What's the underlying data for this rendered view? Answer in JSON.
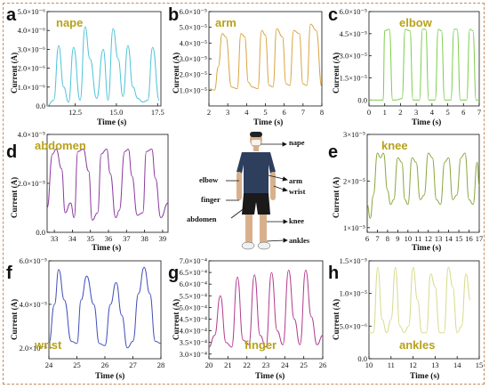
{
  "chart_data": [
    {
      "id": "a",
      "panel_label": "a",
      "title": "nape",
      "type": "line",
      "color": "#4fc3d9",
      "xlabel": "Time (s)",
      "ylabel": "Current (A)",
      "xlim": [
        10.8,
        17.7
      ],
      "ylim": [
        0,
        5e-06
      ],
      "xticks": [
        {
          "v": 12.5,
          "label": "12.5"
        },
        {
          "v": 15,
          "label": "15.0"
        },
        {
          "v": 17.5,
          "label": "17.5"
        }
      ],
      "yticks": [
        {
          "v": 0,
          "label": "0.0"
        },
        {
          "v": 1e-06,
          "label": "1.0×10⁻⁶"
        },
        {
          "v": 2e-06,
          "label": "2.0×10⁻⁶"
        },
        {
          "v": 3e-06,
          "label": "3.0×10⁻⁶"
        },
        {
          "v": 4e-06,
          "label": "4.0×10⁻⁶"
        },
        {
          "v": 5e-06,
          "label": "5.0×10⁻⁶"
        }
      ],
      "x": [
        10.8,
        11.2,
        11.5,
        11.8,
        12.1,
        12.4,
        12.8,
        13.1,
        13.4,
        13.8,
        14.2,
        14.5,
        14.8,
        15.1,
        15.4,
        15.7,
        16.0,
        16.3,
        16.6,
        16.9,
        17.2,
        17.6
      ],
      "y": [
        0,
        3e-07,
        3.2e-06,
        1e-06,
        2e-07,
        3.1e-06,
        3e-07,
        4.2e-06,
        2.5e-06,
        4e-07,
        3e-06,
        3e-07,
        4.1e-06,
        2.5e-06,
        5e-07,
        3.2e-06,
        1e-06,
        4e-07,
        2e-07,
        3e-07,
        3.1e-06,
        3e-07
      ]
    },
    {
      "id": "b",
      "panel_label": "b",
      "title": "arm",
      "type": "line",
      "color": "#d9a441",
      "xlabel": "Time (s)",
      "ylabel": "Current (A)",
      "xlim": [
        2,
        8
      ],
      "ylim": [
        0,
        6e-05
      ],
      "xticks": [
        {
          "v": 2,
          "label": "2"
        },
        {
          "v": 3,
          "label": "3"
        },
        {
          "v": 4,
          "label": "4"
        },
        {
          "v": 5,
          "label": "5"
        },
        {
          "v": 6,
          "label": "6"
        },
        {
          "v": 7,
          "label": "7"
        },
        {
          "v": 8,
          "label": "8"
        }
      ],
      "yticks": [
        {
          "v": 1e-05,
          "label": "1.0×10⁻⁵"
        },
        {
          "v": 2e-05,
          "label": "2.0×10⁻⁵"
        },
        {
          "v": 3e-05,
          "label": "3.0×10⁻⁵"
        },
        {
          "v": 4e-05,
          "label": "4.0×10⁻⁵"
        },
        {
          "v": 5e-05,
          "label": "5.0×10⁻⁵"
        },
        {
          "v": 6e-05,
          "label": "6.0×10⁻⁵"
        }
      ],
      "x": [
        2.0,
        2.3,
        2.5,
        2.7,
        2.9,
        3.2,
        3.5,
        3.7,
        3.9,
        4.1,
        4.3,
        4.6,
        4.8,
        5.0,
        5.2,
        5.4,
        5.6,
        5.9,
        6.1,
        6.3,
        6.5,
        6.8,
        7.0,
        7.2,
        7.4,
        7.7,
        8.0
      ],
      "y": [
        1.1e-05,
        1e-05,
        2.5e-05,
        4.6e-05,
        4.4e-05,
        1.2e-05,
        1.1e-05,
        4.6e-05,
        4.4e-05,
        1.5e-05,
        1.2e-05,
        1.1e-05,
        4.8e-05,
        4.5e-05,
        1.3e-05,
        1.2e-05,
        4.9e-05,
        4.4e-05,
        1.4e-05,
        1.3e-05,
        4.8e-05,
        4.6e-05,
        1.4e-05,
        1.3e-05,
        5.2e-05,
        4.8e-05,
        1.2e-05
      ]
    },
    {
      "id": "c",
      "panel_label": "c",
      "title": "elbow",
      "type": "line",
      "color": "#7ccd4a",
      "xlabel": "Time (s)",
      "ylabel": "Current (A)",
      "xlim": [
        0,
        7
      ],
      "ylim": [
        -4e-06,
        6e-05
      ],
      "xticks": [
        {
          "v": 0,
          "label": "0"
        },
        {
          "v": 1,
          "label": "1"
        },
        {
          "v": 2,
          "label": "2"
        },
        {
          "v": 3,
          "label": "3"
        },
        {
          "v": 4,
          "label": "4"
        },
        {
          "v": 5,
          "label": "5"
        },
        {
          "v": 6,
          "label": "6"
        },
        {
          "v": 7,
          "label": "7"
        }
      ],
      "yticks": [
        {
          "v": 0,
          "label": "0.0"
        },
        {
          "v": 1.5e-05,
          "label": "1.5×10⁻⁵"
        },
        {
          "v": 3e-05,
          "label": "3.0×10⁻⁵"
        },
        {
          "v": 4.5e-05,
          "label": "4.5×10⁻⁵"
        },
        {
          "v": 6e-05,
          "label": "6.0×10⁻⁵"
        }
      ],
      "x": [
        0.0,
        0.6,
        0.9,
        1.0,
        1.3,
        1.5,
        1.7,
        2.1,
        2.3,
        2.6,
        2.8,
        3.2,
        3.4,
        3.6,
        3.8,
        4.2,
        4.4,
        4.6,
        4.8,
        5.2,
        5.4,
        5.6,
        5.8,
        6.2,
        6.4,
        6.6,
        6.8,
        7.0
      ],
      "y": [
        0,
        0,
        0,
        4.7e-05,
        4.8e-05,
        0,
        0,
        1e-06,
        4.8e-05,
        4.7e-05,
        0,
        0,
        4.8e-05,
        4.8e-05,
        0,
        0,
        4.8e-05,
        4.7e-05,
        0,
        0,
        4.8e-05,
        4.8e-05,
        0,
        0,
        4.8e-05,
        4.7e-05,
        0,
        0
      ]
    },
    {
      "id": "d",
      "panel_label": "d",
      "title": "abdomen",
      "type": "line",
      "color": "#8c3a9e",
      "xlabel": "Time (s)",
      "ylabel": "Current (A)",
      "xlim": [
        32.6,
        39.3
      ],
      "ylim": [
        0,
        4e-05
      ],
      "xticks": [
        {
          "v": 33,
          "label": "33"
        },
        {
          "v": 34,
          "label": "34"
        },
        {
          "v": 35,
          "label": "35"
        },
        {
          "v": 36,
          "label": "36"
        },
        {
          "v": 37,
          "label": "37"
        },
        {
          "v": 38,
          "label": "38"
        },
        {
          "v": 39,
          "label": "39"
        }
      ],
      "yticks": [
        {
          "v": 0,
          "label": "0.0"
        },
        {
          "v": 2e-05,
          "label": "2.0×10⁻⁵"
        },
        {
          "v": 4e-05,
          "label": "4.0×10⁻⁵"
        }
      ],
      "x": [
        32.6,
        32.9,
        33.1,
        33.4,
        33.6,
        33.9,
        34.1,
        34.3,
        34.6,
        34.9,
        35.1,
        35.4,
        35.6,
        35.9,
        36.1,
        36.4,
        36.6,
        36.9,
        37.1,
        37.3,
        37.6,
        37.9,
        38.1,
        38.4,
        38.6,
        38.9,
        39.3
      ],
      "y": [
        1e-05,
        3.2e-05,
        3.4e-05,
        2.6e-05,
        8e-06,
        1.2e-05,
        6e-06,
        3.3e-05,
        3.4e-05,
        2.5e-05,
        5e-06,
        8e-06,
        3.2e-05,
        3.4e-05,
        2.4e-05,
        6e-06,
        9e-06,
        3.3e-05,
        3.4e-05,
        2.3e-05,
        7e-06,
        8e-06,
        3.3e-05,
        3.4e-05,
        2.2e-05,
        6e-06,
        1.2e-05
      ]
    },
    {
      "id": "e",
      "panel_label": "e",
      "title": "knee",
      "type": "line",
      "color": "#8aa63c",
      "xlabel": "Time (s)",
      "ylabel": "Current (A)",
      "xlim": [
        6,
        17
      ],
      "ylim": [
        9e-06,
        3e-05
      ],
      "xticks": [
        {
          "v": 6,
          "label": "6"
        },
        {
          "v": 7,
          "label": "7"
        },
        {
          "v": 8,
          "label": "8"
        },
        {
          "v": 9,
          "label": "9"
        },
        {
          "v": 10,
          "label": "10"
        },
        {
          "v": 11,
          "label": "11"
        },
        {
          "v": 12,
          "label": "12"
        },
        {
          "v": 13,
          "label": "13"
        },
        {
          "v": 14,
          "label": "14"
        },
        {
          "v": 15,
          "label": "15"
        },
        {
          "v": 16,
          "label": "16"
        },
        {
          "v": 17,
          "label": "17"
        }
      ],
      "yticks": [
        {
          "v": 1e-05,
          "label": "1×10⁻⁵"
        },
        {
          "v": 2e-05,
          "label": "2×10⁻⁵"
        },
        {
          "v": 3e-05,
          "label": "3×10⁻⁵"
        }
      ],
      "x": [
        6.0,
        6.3,
        6.6,
        7.0,
        7.3,
        7.6,
        8.0,
        8.3,
        8.6,
        9.0,
        9.4,
        9.7,
        10.0,
        10.4,
        10.8,
        11.2,
        11.6,
        12.0,
        12.4,
        12.8,
        13.2,
        13.6,
        14.0,
        14.4,
        14.8,
        15.2,
        15.6,
        16.0,
        16.4,
        16.8,
        17.0
      ],
      "y": [
        1.5e-05,
        1.2e-05,
        1.7e-05,
        2.6e-05,
        2.5e-05,
        2.6e-05,
        1.8e-05,
        1.5e-05,
        1.6e-05,
        2.5e-05,
        2.4e-05,
        1.6e-05,
        1.5e-05,
        2.5e-05,
        2.4e-05,
        1.6e-05,
        1.7e-05,
        2.6e-05,
        2.5e-05,
        1.6e-05,
        1.5e-05,
        2.4e-05,
        2.5e-05,
        1.6e-05,
        1.7e-05,
        2.5e-05,
        2.6e-05,
        1.6e-05,
        1.5e-05,
        2.4e-05,
        1.9e-05
      ]
    },
    {
      "id": "f",
      "panel_label": "f",
      "title": "wrist",
      "type": "line",
      "color": "#3f4fb8",
      "xlabel": "Time (s)",
      "ylabel": "Current (A)",
      "xlim": [
        24,
        28
      ],
      "ylim": [
        1.5e-05,
        6e-05
      ],
      "xticks": [
        {
          "v": 24,
          "label": "24"
        },
        {
          "v": 25,
          "label": "25"
        },
        {
          "v": 26,
          "label": "26"
        },
        {
          "v": 27,
          "label": "27"
        },
        {
          "v": 28,
          "label": "28"
        }
      ],
      "yticks": [
        {
          "v": 2e-05,
          "label": "2.0×10⁻⁵"
        },
        {
          "v": 4e-05,
          "label": "4.0×10⁻⁵"
        },
        {
          "v": 6e-05,
          "label": "6.0×10⁻⁵"
        }
      ],
      "x": [
        24.0,
        24.2,
        24.35,
        24.55,
        24.8,
        25.0,
        25.15,
        25.35,
        25.6,
        25.8,
        26.0,
        26.2,
        26.4,
        26.6,
        26.8,
        27.0,
        27.2,
        27.4,
        27.6,
        27.8,
        28.0
      ],
      "y": [
        2.2e-05,
        4e-05,
        5.6e-05,
        4.2e-05,
        2.3e-05,
        2.2e-05,
        4.2e-05,
        5.3e-05,
        4e-05,
        2.2e-05,
        2.1e-05,
        4e-05,
        5e-05,
        3.5e-05,
        2e-05,
        2.3e-05,
        4.5e-05,
        5.7e-05,
        4.5e-05,
        2.3e-05,
        2.2e-05
      ]
    },
    {
      "id": "g",
      "panel_label": "g",
      "title": "finger",
      "type": "line",
      "color": "#b23a8f",
      "xlabel": "Time (s)",
      "ylabel": "Current (A)",
      "xlim": [
        20,
        26
      ],
      "ylim": [
        0.00028,
        0.0007
      ],
      "xticks": [
        {
          "v": 20,
          "label": "20"
        },
        {
          "v": 21,
          "label": "21"
        },
        {
          "v": 22,
          "label": "22"
        },
        {
          "v": 23,
          "label": "23"
        },
        {
          "v": 24,
          "label": "24"
        },
        {
          "v": 25,
          "label": "25"
        },
        {
          "v": 26,
          "label": "26"
        }
      ],
      "yticks": [
        {
          "v": 0.0003,
          "label": "3.0×10⁻⁴"
        },
        {
          "v": 0.00035,
          "label": "3.5×10⁻⁴"
        },
        {
          "v": 0.0004,
          "label": "4.0×10⁻⁴"
        },
        {
          "v": 0.00045,
          "label": "4.5×10⁻⁴"
        },
        {
          "v": 0.0005,
          "label": "5.0×10⁻⁴"
        },
        {
          "v": 0.00055,
          "label": "5.5×10⁻⁴"
        },
        {
          "v": 0.0006,
          "label": "6.0×10⁻⁴"
        },
        {
          "v": 0.00065,
          "label": "6.5×10⁻⁴"
        },
        {
          "v": 0.0007,
          "label": "7.0×10⁻⁴"
        }
      ],
      "x": [
        20.0,
        20.3,
        20.6,
        20.9,
        21.2,
        21.5,
        21.8,
        22.1,
        22.4,
        22.7,
        23.0,
        23.3,
        23.6,
        23.9,
        24.2,
        24.5,
        24.8,
        25.1,
        25.4,
        25.7,
        26.0
      ],
      "y": [
        0.00033,
        0.00038,
        0.00055,
        0.00035,
        0.00033,
        0.00063,
        0.00036,
        0.00034,
        0.00064,
        0.00038,
        0.00033,
        0.00065,
        0.0004,
        0.00034,
        0.00066,
        0.00045,
        0.00034,
        0.00066,
        0.00046,
        0.00034,
        0.00038
      ]
    },
    {
      "id": "h",
      "panel_label": "h",
      "title": "ankles",
      "type": "line",
      "color": "#d6db8c",
      "xlabel": "Time (s)",
      "ylabel": "Current (A)",
      "xlim": [
        10,
        15
      ],
      "ylim": [
        0,
        1.5e-05
      ],
      "xticks": [
        {
          "v": 10,
          "label": "10"
        },
        {
          "v": 11,
          "label": "11"
        },
        {
          "v": 12,
          "label": "12"
        },
        {
          "v": 13,
          "label": "13"
        },
        {
          "v": 14,
          "label": "14"
        },
        {
          "v": 15,
          "label": "15"
        }
      ],
      "yticks": [
        {
          "v": 0,
          "label": "0.0"
        },
        {
          "v": 5e-06,
          "label": "5.0×10⁻⁶"
        },
        {
          "v": 1e-05,
          "label": "1.0×10⁻⁵"
        },
        {
          "v": 1.5e-05,
          "label": "1.5×10⁻⁵"
        }
      ],
      "x": [
        10.0,
        10.2,
        10.4,
        10.6,
        10.8,
        11.0,
        11.2,
        11.4,
        11.6,
        11.8,
        12.0,
        12.2,
        12.4,
        12.6,
        12.8,
        13.0,
        13.2,
        13.4,
        13.6,
        13.8,
        14.0,
        14.2,
        14.4,
        14.6
      ],
      "y": [
        4e-06,
        4e-06,
        1.4e-05,
        6e-06,
        4e-06,
        6e-06,
        1.4e-05,
        5e-06,
        4e-06,
        5e-06,
        1.4e-05,
        9e-06,
        4e-06,
        4e-06,
        1.3e-05,
        1.1e-05,
        4e-06,
        4e-06,
        1.4e-05,
        1.1e-05,
        4e-06,
        5e-06,
        1.3e-05,
        9e-06
      ]
    }
  ],
  "body_labels": {
    "nape": "nape",
    "arm": "arm",
    "wrist": "wrist",
    "knee": "knee",
    "ankles": "ankles",
    "elbow": "elbow",
    "finger": "finger",
    "abdomen": "abdomen"
  },
  "colors": {
    "frame": "#c98a5a",
    "shirt": "#2e3f5e",
    "shorts": "#1a1a1a",
    "skin": "#e0b893"
  }
}
